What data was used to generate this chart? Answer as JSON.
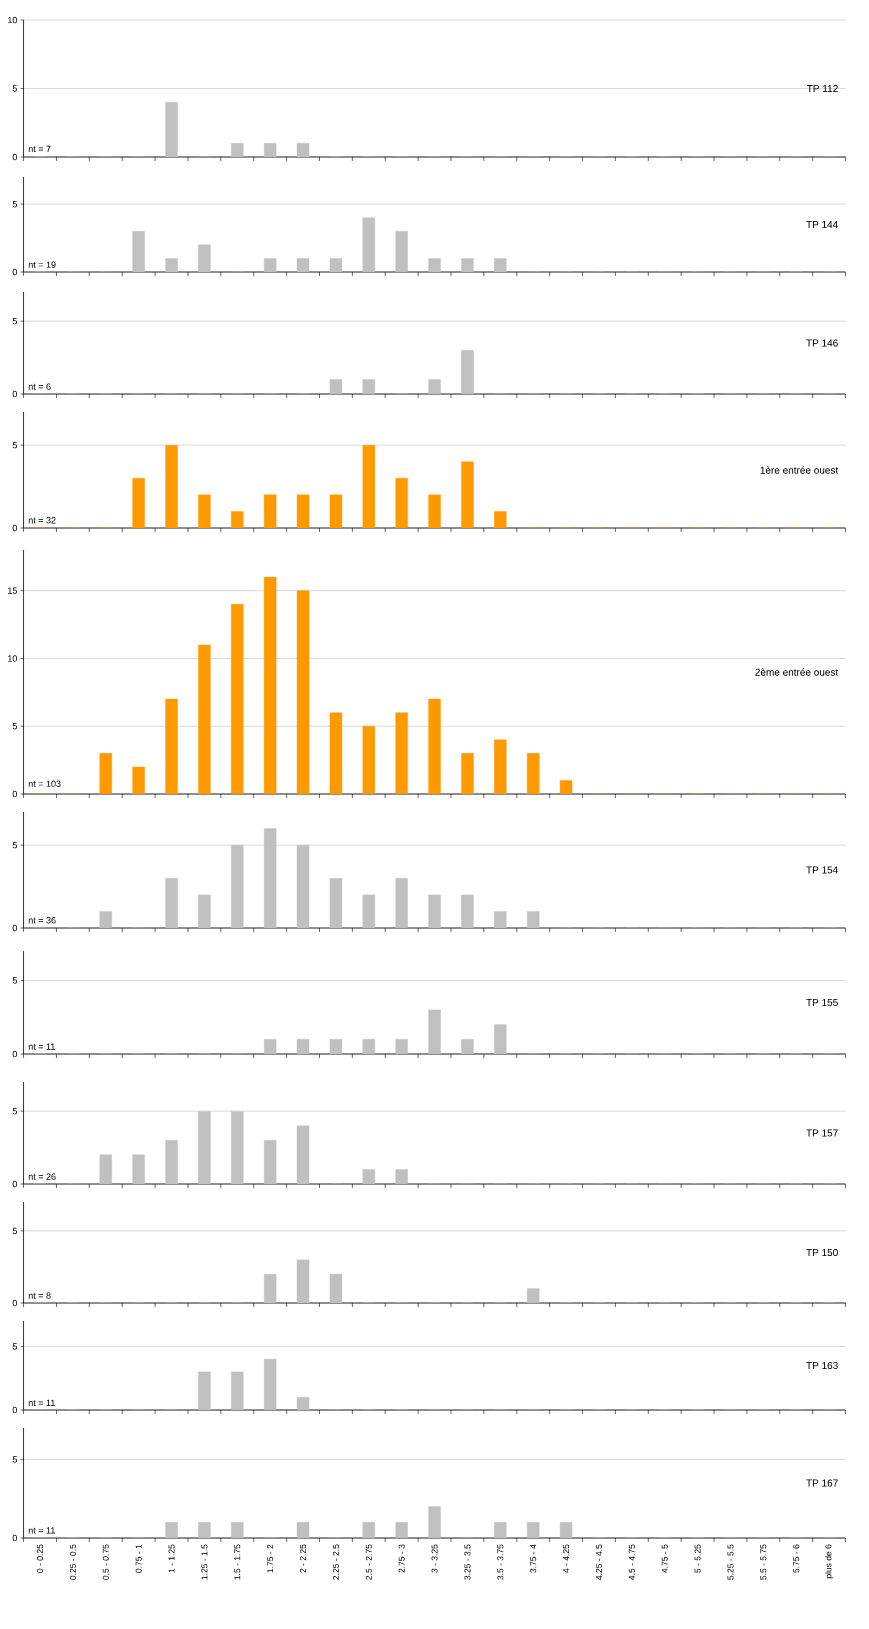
{
  "chart_data": [
    {
      "type": "bar",
      "categories": [
        null,
        null,
        null,
        null,
        null,
        null,
        null,
        null,
        null,
        null,
        null,
        null,
        null,
        null,
        null,
        null,
        null,
        null,
        null,
        null,
        null,
        null,
        null,
        null,
        null
      ],
      "series": [
        {
          "name": "TP 112",
          "color": "#c0c0c0",
          "values": [
            0,
            0,
            0,
            0,
            4,
            0,
            1,
            1,
            1,
            0,
            0,
            0,
            0,
            0,
            0,
            0,
            0,
            0,
            0,
            0,
            0,
            0,
            0,
            0,
            0
          ]
        }
      ],
      "ylim": [
        0,
        10
      ],
      "yticks": [
        0,
        5,
        10
      ],
      "grid": "y",
      "tick_labels": "y",
      "annotations": [
        "nt = 7"
      ]
    },
    {
      "type": "bar",
      "categories": [
        null,
        null,
        null,
        null,
        null,
        null,
        null,
        null,
        null,
        null,
        null,
        null,
        null,
        null,
        null,
        null,
        null,
        null,
        null,
        null,
        null,
        null,
        null,
        null,
        null
      ],
      "series": [
        {
          "name": "TP 144",
          "color": "#c0c0c0",
          "values": [
            0,
            0,
            0,
            3,
            1,
            2,
            0,
            1,
            1,
            1,
            4,
            3,
            1,
            1,
            1,
            0,
            0,
            0,
            0,
            0,
            0,
            0,
            0,
            0,
            0
          ]
        }
      ],
      "ylim": [
        0,
        7
      ],
      "yticks": [
        0,
        5
      ],
      "grid": "y",
      "tick_labels": "y",
      "annotations": [
        "nt = 19"
      ]
    },
    {
      "type": "bar",
      "categories": [
        null,
        null,
        null,
        null,
        null,
        null,
        null,
        null,
        null,
        null,
        null,
        null,
        null,
        null,
        null,
        null,
        null,
        null,
        null,
        null,
        null,
        null,
        null,
        null,
        null
      ],
      "series": [
        {
          "name": "TP 146",
          "color": "#c0c0c0",
          "values": [
            0,
            0,
            0,
            0,
            0,
            0,
            0,
            0,
            0,
            1,
            1,
            0,
            1,
            3,
            0,
            0,
            0,
            0,
            0,
            0,
            0,
            0,
            0,
            0,
            0
          ]
        }
      ],
      "ylim": [
        0,
        7
      ],
      "yticks": [
        0,
        5
      ],
      "grid": "y",
      "tick_labels": "y",
      "annotations": [
        "nt = 6"
      ]
    },
    {
      "type": "bar",
      "categories": [
        null,
        null,
        null,
        null,
        null,
        null,
        null,
        null,
        null,
        null,
        null,
        null,
        null,
        null,
        null,
        null,
        null,
        null,
        null,
        null,
        null,
        null,
        null,
        null,
        null
      ],
      "series": [
        {
          "name": "1ère entrée ouest",
          "color": "#ff9900",
          "values": [
            0,
            0,
            0,
            3,
            5,
            2,
            1,
            2,
            2,
            2,
            5,
            3,
            2,
            4,
            1,
            0,
            0,
            0,
            0,
            0,
            0,
            0,
            0,
            0,
            0
          ]
        }
      ],
      "ylim": [
        0,
        7
      ],
      "yticks": [
        0,
        5
      ],
      "grid": "y",
      "tick_labels": "y",
      "annotations": [
        "nt = 32"
      ]
    },
    {
      "type": "bar",
      "categories": [
        null,
        null,
        null,
        null,
        null,
        null,
        null,
        null,
        null,
        null,
        null,
        null,
        null,
        null,
        null,
        null,
        null,
        null,
        null,
        null,
        null,
        null,
        null,
        null,
        null
      ],
      "series": [
        {
          "name": "2ème entrée ouest",
          "color": "#ff9900",
          "values": [
            0,
            0,
            3,
            2,
            7,
            11,
            14,
            16,
            15,
            6,
            5,
            6,
            7,
            3,
            4,
            3,
            1,
            0,
            0,
            0,
            0,
            0,
            0,
            0,
            0
          ]
        }
      ],
      "ylim": [
        0,
        18
      ],
      "yticks": [
        0,
        5,
        10,
        15
      ],
      "grid": "y",
      "tick_labels": "y",
      "annotations": [
        "nt = 103"
      ]
    },
    {
      "type": "bar",
      "categories": [
        null,
        null,
        null,
        null,
        null,
        null,
        null,
        null,
        null,
        null,
        null,
        null,
        null,
        null,
        null,
        null,
        null,
        null,
        null,
        null,
        null,
        null,
        null,
        null,
        null
      ],
      "series": [
        {
          "name": "TP 154",
          "color": "#c0c0c0",
          "values": [
            0,
            0,
            1,
            0,
            3,
            2,
            5,
            6,
            5,
            3,
            2,
            3,
            2,
            2,
            1,
            1,
            0,
            0,
            0,
            0,
            0,
            0,
            0,
            0,
            0
          ]
        }
      ],
      "ylim": [
        0,
        7
      ],
      "yticks": [
        0,
        5
      ],
      "grid": "y",
      "tick_labels": "y",
      "annotations": [
        "nt = 36"
      ]
    },
    {
      "type": "bar",
      "categories": [
        null,
        null,
        null,
        null,
        null,
        null,
        null,
        null,
        null,
        null,
        null,
        null,
        null,
        null,
        null,
        null,
        null,
        null,
        null,
        null,
        null,
        null,
        null,
        null,
        null
      ],
      "series": [
        {
          "name": "TP 155",
          "color": "#c0c0c0",
          "values": [
            0,
            0,
            0,
            0,
            0,
            0,
            0,
            1,
            1,
            1,
            1,
            1,
            3,
            1,
            2,
            0,
            0,
            0,
            0,
            0,
            0,
            0,
            0,
            0,
            0
          ]
        }
      ],
      "ylim": [
        0,
        7
      ],
      "yticks": [
        0,
        5
      ],
      "grid": "y",
      "tick_labels": "y",
      "annotations": [
        "nt = 11"
      ]
    },
    {
      "type": "bar",
      "categories": [
        null,
        null,
        null,
        null,
        null,
        null,
        null,
        null,
        null,
        null,
        null,
        null,
        null,
        null,
        null,
        null,
        null,
        null,
        null,
        null,
        null,
        null,
        null,
        null,
        null
      ],
      "series": [
        {
          "name": "TP 157",
          "color": "#c0c0c0",
          "values": [
            0,
            0,
            2,
            2,
            3,
            5,
            5,
            3,
            4,
            0,
            1,
            1,
            0,
            0,
            0,
            0,
            0,
            0,
            0,
            0,
            0,
            0,
            0,
            0,
            0
          ]
        }
      ],
      "ylim": [
        0,
        7
      ],
      "yticks": [
        0,
        5
      ],
      "grid": "y",
      "tick_labels": "y",
      "annotations": [
        "nt = 26"
      ]
    },
    {
      "type": "bar",
      "categories": [
        null,
        null,
        null,
        null,
        null,
        null,
        null,
        null,
        null,
        null,
        null,
        null,
        null,
        null,
        null,
        null,
        null,
        null,
        null,
        null,
        null,
        null,
        null,
        null,
        null
      ],
      "series": [
        {
          "name": "TP 150",
          "color": "#c0c0c0",
          "values": [
            0,
            0,
            0,
            0,
            0,
            0,
            0,
            2,
            3,
            2,
            0,
            0,
            0,
            0,
            0,
            1,
            0,
            0,
            0,
            0,
            0,
            0,
            0,
            0,
            0
          ]
        }
      ],
      "ylim": [
        0,
        7
      ],
      "yticks": [
        0,
        5
      ],
      "grid": "y",
      "tick_labels": "y",
      "annotations": [
        "nt = 8"
      ]
    },
    {
      "type": "bar",
      "categories": [
        null,
        null,
        null,
        null,
        null,
        null,
        null,
        null,
        null,
        null,
        null,
        null,
        null,
        null,
        null,
        null,
        null,
        null,
        null,
        null,
        null,
        null,
        null,
        null,
        null
      ],
      "series": [
        {
          "name": "TP 163",
          "color": "#c0c0c0",
          "values": [
            0,
            0,
            0,
            0,
            0,
            3,
            3,
            4,
            1,
            0,
            0,
            0,
            0,
            0,
            0,
            0,
            0,
            0,
            0,
            0,
            0,
            0,
            0,
            0,
            0
          ]
        }
      ],
      "ylim": [
        0,
        7
      ],
      "yticks": [
        0,
        5
      ],
      "grid": "y",
      "tick_labels": "y",
      "annotations": [
        "nt = 11"
      ]
    },
    {
      "type": "bar",
      "categories": [
        "0 - 0.25",
        "0.25 - 0.5",
        "0.5 - 0.75",
        "0.75 - 1",
        "1 - 1.25",
        "1.25 - 1.5",
        "1.5 - 1.75",
        "1.75 - 2",
        "2 - 2.25",
        "2.25 - 2.5",
        "2.5 - 2.75",
        "2.75 - 3",
        "3 - 3.25",
        "3.25 - 3.5",
        "3.5 - 3.75",
        "3.75 - 4",
        "4 - 4.25",
        "4.25 - 4.5",
        "4.5 - 4.75",
        "4.75 - 5",
        "5 - 5.25",
        "5.25 - 5.5",
        "5.5 - 5.75",
        "5.75 - 6",
        "plus de 6"
      ],
      "series": [
        {
          "name": "TP 167",
          "color": "#c0c0c0",
          "values": [
            0,
            0,
            0,
            0,
            1,
            1,
            1,
            0,
            1,
            0,
            1,
            1,
            2,
            0,
            1,
            1,
            1,
            0,
            0,
            0,
            0,
            0,
            0,
            0,
            0
          ]
        }
      ],
      "ylim": [
        0,
        7
      ],
      "yticks": [
        0,
        5
      ],
      "grid": "y",
      "annotations": [
        "nt = 11"
      ]
    }
  ]
}
